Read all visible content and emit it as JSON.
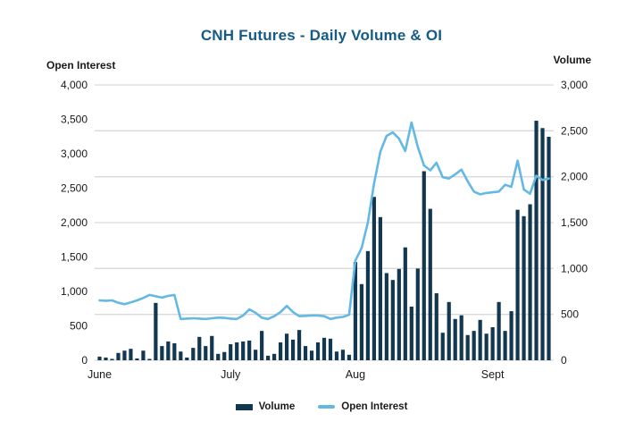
{
  "title": "CNH Futures  - Daily Volume & OI",
  "colors": {
    "title": "#155B85",
    "bar": "#123750",
    "line": "#64B9E4",
    "grid": "#D9D9D9",
    "text": "#1A1A1A"
  },
  "left_axis": {
    "title": "Open Interest",
    "ticks": [
      "4,000",
      "3,500",
      "3,000",
      "2,500",
      "2,000",
      "1,500",
      "1,000",
      "500",
      "0"
    ]
  },
  "right_axis": {
    "title": "Volume",
    "ticks": [
      "3,000",
      "2,500",
      "2,000",
      "1,500",
      "1,000",
      "500",
      "0"
    ]
  },
  "legend": [
    {
      "label": "Volume",
      "type": "bar"
    },
    {
      "label": "Open Interest",
      "type": "line"
    }
  ],
  "chart_data": {
    "type": "bar",
    "subtype": "dual-axis bar + line, daily",
    "title": "CNH Futures  - Daily Volume & OI",
    "xlabel": "",
    "left_ylabel": "Open Interest",
    "right_ylabel": "Volume",
    "left_ylim": [
      0,
      4000
    ],
    "right_ylim": [
      0,
      3000
    ],
    "grid": "horizontal, every 500 on right axis",
    "legend_position": "bottom-center",
    "x_month_labels": [
      {
        "label": "June",
        "index": 0
      },
      {
        "label": "July",
        "index": 21
      },
      {
        "label": "Aug",
        "index": 41
      },
      {
        "label": "Sept",
        "index": 63
      }
    ],
    "series": [
      {
        "name": "Volume",
        "type": "bar",
        "axis": "right",
        "values": [
          40,
          30,
          15,
          80,
          105,
          125,
          20,
          105,
          15,
          625,
          155,
          205,
          185,
          95,
          30,
          135,
          255,
          155,
          265,
          70,
          90,
          175,
          195,
          205,
          215,
          115,
          320,
          50,
          70,
          195,
          290,
          225,
          330,
          155,
          105,
          195,
          245,
          235,
          95,
          115,
          60,
          1070,
          830,
          1190,
          1780,
          1560,
          950,
          875,
          995,
          1230,
          585,
          1000,
          2060,
          1650,
          730,
          300,
          635,
          450,
          490,
          275,
          320,
          440,
          290,
          360,
          635,
          320,
          535,
          1640,
          1570,
          1700,
          2610,
          2530,
          2435
        ]
      },
      {
        "name": "Open Interest",
        "type": "line",
        "axis": "left",
        "values": [
          870,
          865,
          870,
          835,
          815,
          840,
          870,
          905,
          950,
          930,
          910,
          935,
          950,
          600,
          605,
          610,
          605,
          600,
          610,
          620,
          615,
          605,
          600,
          650,
          740,
          690,
          620,
          600,
          640,
          700,
          790,
          700,
          640,
          645,
          650,
          650,
          640,
          600,
          620,
          630,
          660,
          1450,
          1630,
          2000,
          2570,
          3030,
          3260,
          3310,
          3220,
          3040,
          3455,
          3100,
          2830,
          2760,
          2870,
          2660,
          2640,
          2700,
          2770,
          2600,
          2450,
          2410,
          2430,
          2440,
          2450,
          2550,
          2520,
          2900,
          2480,
          2420,
          2680,
          2620,
          2640
        ]
      }
    ]
  }
}
